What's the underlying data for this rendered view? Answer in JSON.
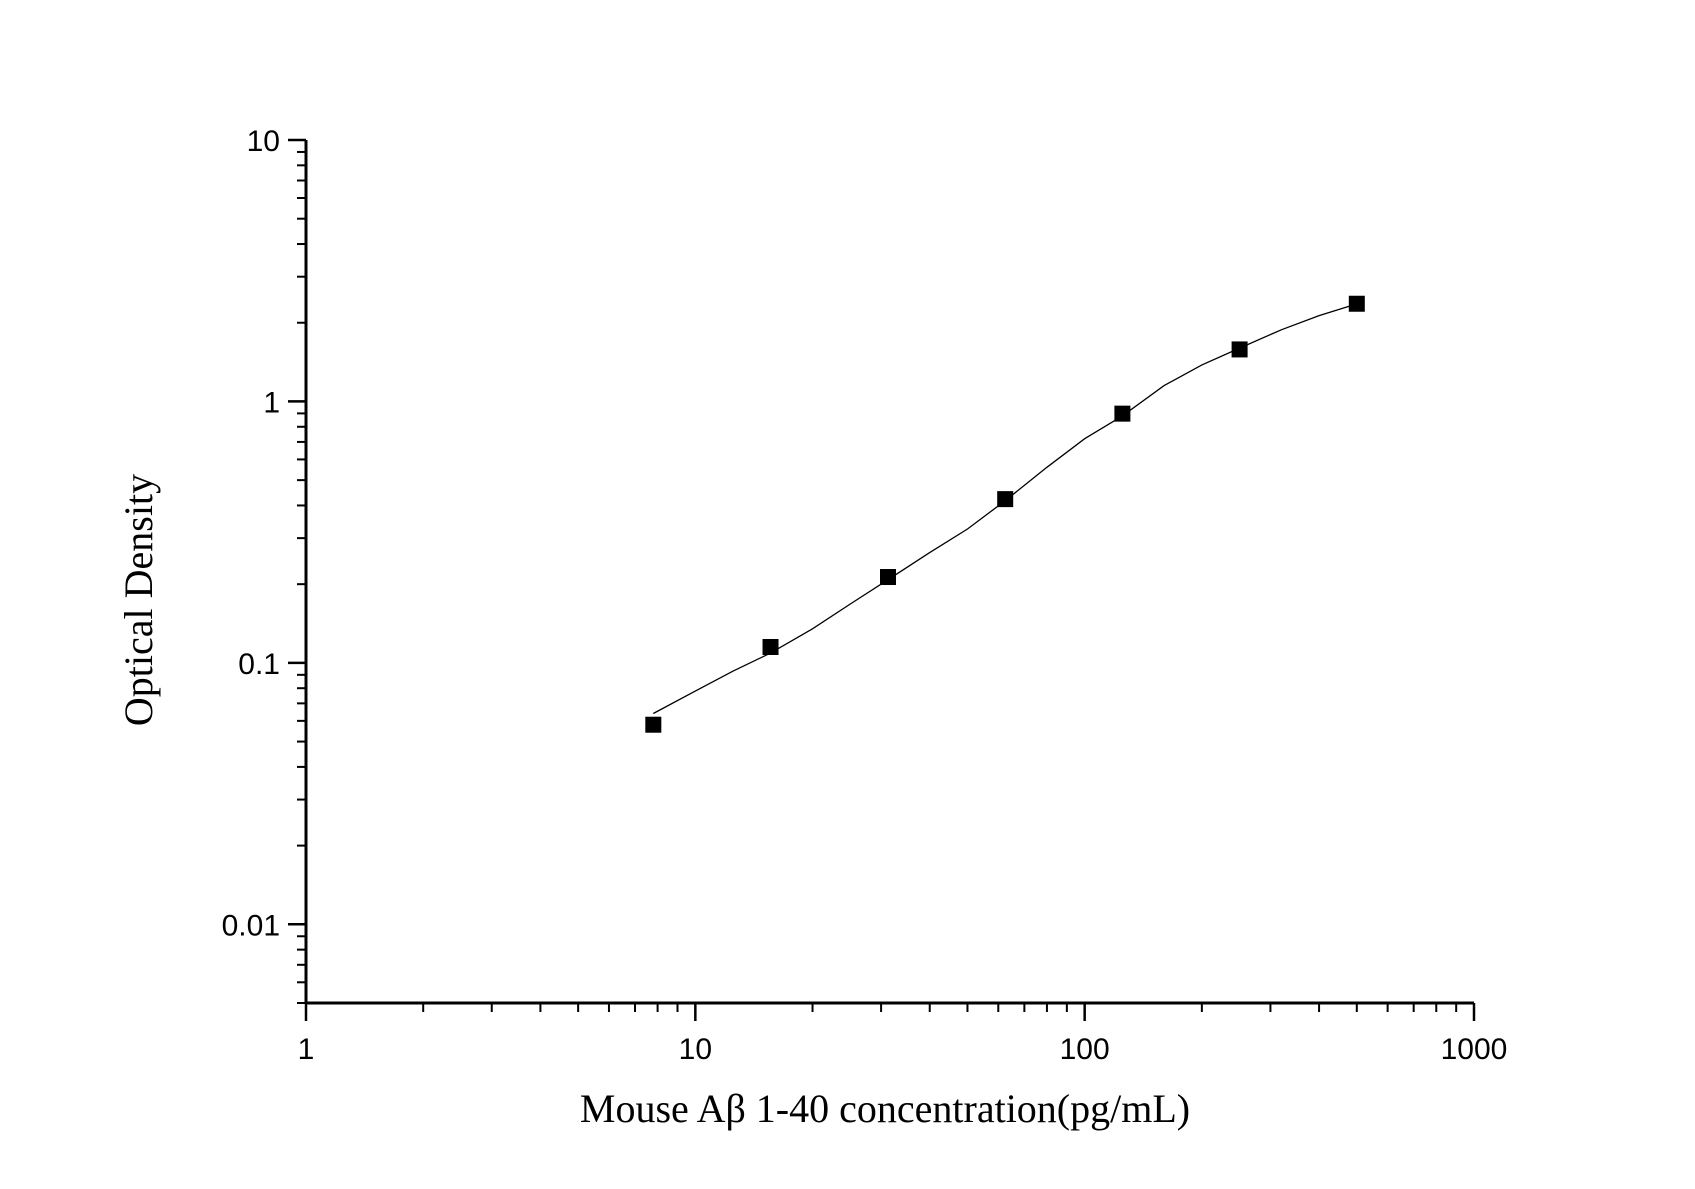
{
  "chart_data": {
    "type": "scatter",
    "xlabel": "Mouse Aβ 1-40 concentration(pg/mL)",
    "ylabel": "Optical Density",
    "xscale": "log",
    "yscale": "log",
    "xlim": [
      1,
      1000
    ],
    "ylim": [
      0.005,
      10
    ],
    "x_ticks": [
      "1",
      "10",
      "100",
      "1000"
    ],
    "y_ticks": [
      "0.01",
      "0.1",
      "1",
      "10"
    ],
    "grid": false,
    "legend": "none",
    "marker_color": "#000000",
    "line_color": "#000000",
    "series": [
      {
        "x": [
          7.8,
          15.6,
          31.25,
          62.5,
          125,
          250,
          500
        ],
        "y": [
          0.058,
          0.115,
          0.213,
          0.423,
          0.898,
          1.581,
          2.364
        ]
      }
    ],
    "fit_curve": {
      "x": [
        7.8,
        10,
        12.5,
        15.6,
        20,
        25,
        31.25,
        40,
        50,
        62.5,
        80,
        100,
        125,
        160,
        200,
        250,
        320,
        400,
        500
      ],
      "y": [
        0.064,
        0.078,
        0.093,
        0.109,
        0.135,
        0.168,
        0.208,
        0.264,
        0.325,
        0.417,
        0.56,
        0.72,
        0.88,
        1.15,
        1.38,
        1.6,
        1.88,
        2.13,
        2.36
      ]
    }
  }
}
